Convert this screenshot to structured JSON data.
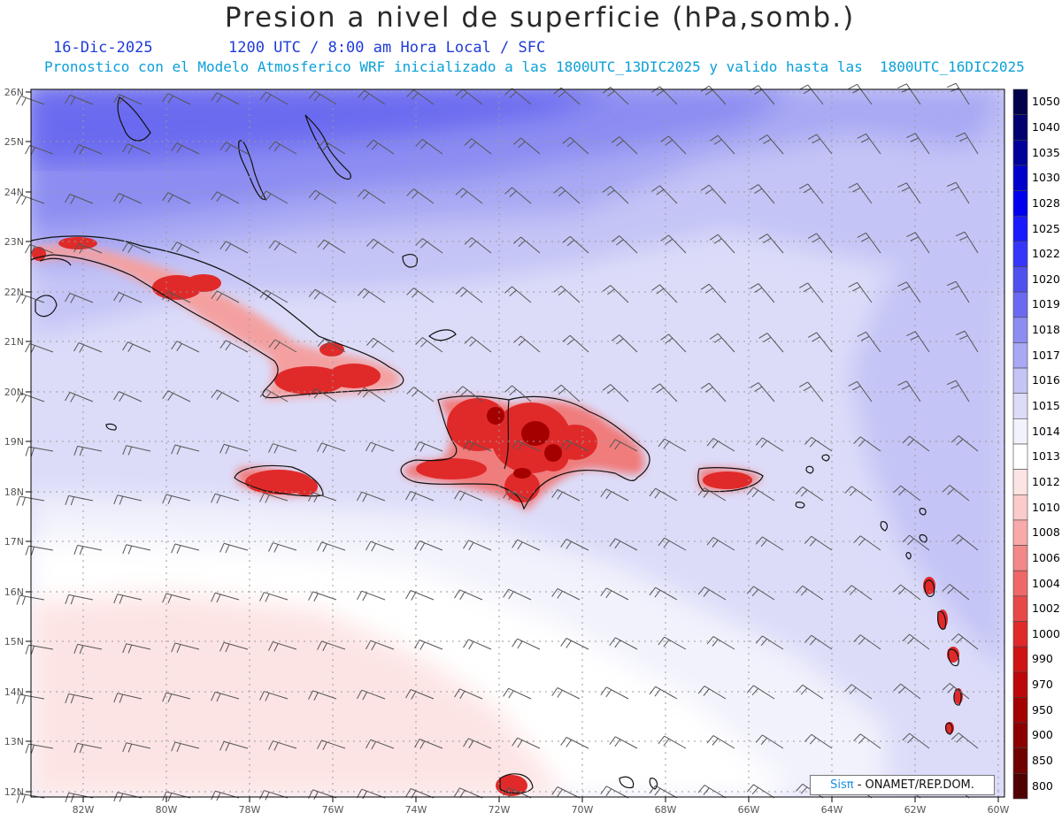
{
  "header": {
    "title": "Presion a nivel de superficie (hPa,somb.)",
    "date": "16-Dic-2025",
    "time_info": "1200 UTC / 8:00 am Hora Local / SFC",
    "model_info": "Pronostico con el Modelo Atmosferico WRF inicializado a las 1800UTC_13DIC2025 y valido hasta las  1800UTC_16DIC2025"
  },
  "axes": {
    "lat_labels": [
      "26N",
      "25N",
      "24N",
      "23N",
      "22N",
      "21N",
      "20N",
      "19N",
      "18N",
      "17N",
      "16N",
      "15N",
      "14N",
      "13N",
      "12N"
    ],
    "lon_labels": [
      "82W",
      "80W",
      "78W",
      "76W",
      "74W",
      "72W",
      "70W",
      "68W",
      "66W",
      "64W",
      "62W",
      "60W"
    ],
    "lat_range": [
      12,
      26
    ],
    "lon_range": [
      -83.2,
      -60
    ]
  },
  "legend": {
    "values": [
      "1050",
      "1040",
      "1035",
      "1030",
      "1028",
      "1025",
      "1022",
      "1020",
      "1019",
      "1018",
      "1017",
      "1016",
      "1015",
      "1014",
      "1013",
      "1012",
      "1010",
      "1008",
      "1006",
      "1004",
      "1002",
      "1000",
      "990",
      "970",
      "950",
      "900",
      "850",
      "800"
    ],
    "colors": [
      "#00004d",
      "#000070",
      "#00009a",
      "#0000cc",
      "#0000ee",
      "#1a1aff",
      "#3636fb",
      "#5050f0",
      "#6a6af0",
      "#8c8cf2",
      "#a8a8f4",
      "#c4c4f6",
      "#dcdcf9",
      "#f2f2fc",
      "#ffffff",
      "#fde4e4",
      "#fbcaca",
      "#f8aaaa",
      "#f38888",
      "#ee6868",
      "#e84848",
      "#e02a2a",
      "#d01414",
      "#bc0808",
      "#a40000",
      "#8a0000",
      "#700000",
      "#500000"
    ]
  },
  "credit": {
    "brand": "Sisπ",
    "org": " - ONAMET/REP.DOM."
  }
}
